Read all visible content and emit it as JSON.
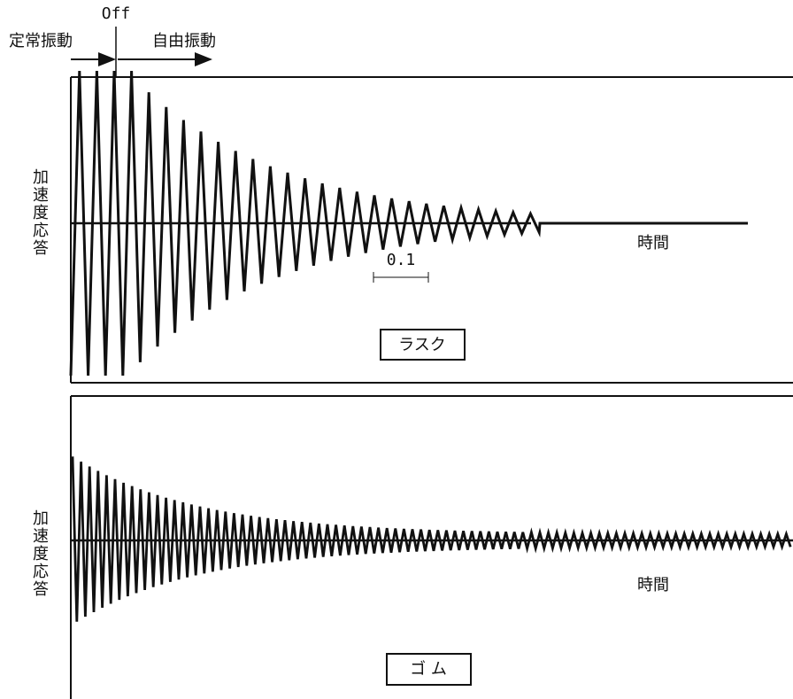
{
  "header": {
    "off_label": "Off",
    "steady_label": "定常振動",
    "free_label": "自由振動"
  },
  "panels": [
    {
      "y_label": "加速度応答",
      "x_label": "時間",
      "scale_label": "0.1",
      "name": "ラスク"
    },
    {
      "y_label": "加速度応答",
      "x_label": "時間",
      "name": "ゴ ム"
    }
  ]
}
